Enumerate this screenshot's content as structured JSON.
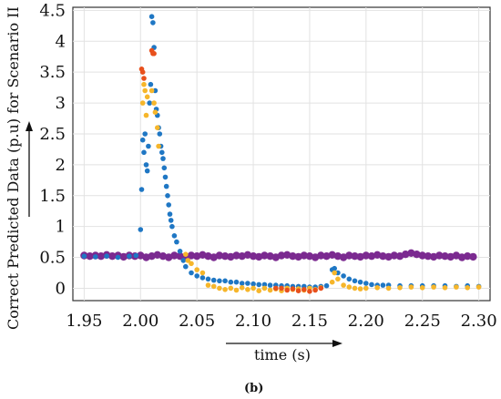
{
  "caption": "(b)",
  "chart_data": {
    "type": "scatter",
    "title": "",
    "xlabel": "time (s)",
    "ylabel": "Correct Predicted Data (p.u) for Scenario II",
    "xlim": [
      1.94,
      2.31
    ],
    "ylim": [
      -0.2,
      4.55
    ],
    "x_ticks": [
      1.95,
      2.0,
      2.05,
      2.1,
      2.15,
      2.2,
      2.25,
      2.3
    ],
    "x_tick_labels": [
      "1.95",
      "2.00",
      "2.05",
      "2.10",
      "2.15",
      "2.20",
      "2.25",
      "2.30"
    ],
    "y_ticks": [
      0,
      0.5,
      1,
      1.5,
      2,
      2.5,
      3,
      3.5,
      4,
      4.5
    ],
    "y_tick_labels": [
      "0",
      "0.5",
      "1",
      "1.5",
      "2",
      "2.5",
      "3",
      "3.5",
      "4",
      "4.5"
    ],
    "grid": true,
    "legend": "none",
    "series": [
      {
        "color": "#7b2a90",
        "points": [
          [
            1.95,
            0.53
          ],
          [
            1.955,
            0.52
          ],
          [
            1.96,
            0.53
          ],
          [
            1.965,
            0.52
          ],
          [
            1.97,
            0.54
          ],
          [
            1.975,
            0.52
          ],
          [
            1.98,
            0.53
          ],
          [
            1.985,
            0.51
          ],
          [
            1.99,
            0.53
          ],
          [
            1.995,
            0.52
          ],
          [
            2.0,
            0.53
          ],
          [
            2.005,
            0.5
          ],
          [
            2.01,
            0.52
          ],
          [
            2.015,
            0.54
          ],
          [
            2.02,
            0.52
          ],
          [
            2.025,
            0.5
          ],
          [
            2.03,
            0.53
          ],
          [
            2.035,
            0.52
          ],
          [
            2.04,
            0.51
          ],
          [
            2.045,
            0.53
          ],
          [
            2.05,
            0.52
          ],
          [
            2.055,
            0.54
          ],
          [
            2.06,
            0.52
          ],
          [
            2.065,
            0.5
          ],
          [
            2.07,
            0.53
          ],
          [
            2.075,
            0.52
          ],
          [
            2.08,
            0.51
          ],
          [
            2.085,
            0.53
          ],
          [
            2.09,
            0.52
          ],
          [
            2.095,
            0.54
          ],
          [
            2.1,
            0.52
          ],
          [
            2.105,
            0.51
          ],
          [
            2.11,
            0.53
          ],
          [
            2.115,
            0.52
          ],
          [
            2.12,
            0.5
          ],
          [
            2.125,
            0.53
          ],
          [
            2.13,
            0.54
          ],
          [
            2.135,
            0.52
          ],
          [
            2.14,
            0.51
          ],
          [
            2.145,
            0.53
          ],
          [
            2.15,
            0.52
          ],
          [
            2.155,
            0.5
          ],
          [
            2.16,
            0.53
          ],
          [
            2.165,
            0.52
          ],
          [
            2.17,
            0.54
          ],
          [
            2.175,
            0.52
          ],
          [
            2.18,
            0.5
          ],
          [
            2.185,
            0.53
          ],
          [
            2.19,
            0.52
          ],
          [
            2.195,
            0.51
          ],
          [
            2.2,
            0.53
          ],
          [
            2.205,
            0.52
          ],
          [
            2.21,
            0.54
          ],
          [
            2.215,
            0.52
          ],
          [
            2.22,
            0.51
          ],
          [
            2.225,
            0.53
          ],
          [
            2.23,
            0.52
          ],
          [
            2.235,
            0.55
          ],
          [
            2.24,
            0.57
          ],
          [
            2.245,
            0.55
          ],
          [
            2.25,
            0.53
          ],
          [
            2.255,
            0.52
          ],
          [
            2.26,
            0.51
          ],
          [
            2.265,
            0.53
          ],
          [
            2.27,
            0.52
          ],
          [
            2.275,
            0.51
          ],
          [
            2.28,
            0.53
          ],
          [
            2.285,
            0.5
          ],
          [
            2.29,
            0.52
          ],
          [
            2.295,
            0.51
          ]
        ]
      },
      {
        "color": "#1f77c4",
        "points": [
          [
            1.95,
            0.52
          ],
          [
            1.96,
            0.51
          ],
          [
            1.97,
            0.52
          ],
          [
            1.98,
            0.5
          ],
          [
            1.99,
            0.52
          ],
          [
            1.996,
            0.53
          ],
          [
            2.0,
            0.95
          ],
          [
            2.001,
            1.6
          ],
          [
            2.002,
            2.4
          ],
          [
            2.003,
            2.2
          ],
          [
            2.004,
            2.5
          ],
          [
            2.005,
            2.0
          ],
          [
            2.006,
            1.9
          ],
          [
            2.007,
            2.3
          ],
          [
            2.008,
            3.0
          ],
          [
            2.009,
            3.3
          ],
          [
            2.01,
            4.4
          ],
          [
            2.011,
            4.3
          ],
          [
            2.012,
            3.9
          ],
          [
            2.013,
            3.2
          ],
          [
            2.014,
            2.9
          ],
          [
            2.015,
            2.8
          ],
          [
            2.016,
            2.6
          ],
          [
            2.017,
            2.5
          ],
          [
            2.018,
            2.3
          ],
          [
            2.019,
            2.2
          ],
          [
            2.02,
            2.1
          ],
          [
            2.021,
            1.95
          ],
          [
            2.022,
            1.8
          ],
          [
            2.023,
            1.65
          ],
          [
            2.024,
            1.5
          ],
          [
            2.025,
            1.35
          ],
          [
            2.026,
            1.2
          ],
          [
            2.027,
            1.1
          ],
          [
            2.028,
            1.0
          ],
          [
            2.03,
            0.85
          ],
          [
            2.032,
            0.75
          ],
          [
            2.035,
            0.6
          ],
          [
            2.038,
            0.45
          ],
          [
            2.04,
            0.35
          ],
          [
            2.045,
            0.25
          ],
          [
            2.05,
            0.2
          ],
          [
            2.055,
            0.17
          ],
          [
            2.06,
            0.15
          ],
          [
            2.065,
            0.13
          ],
          [
            2.07,
            0.12
          ],
          [
            2.075,
            0.12
          ],
          [
            2.08,
            0.1
          ],
          [
            2.085,
            0.1
          ],
          [
            2.09,
            0.08
          ],
          [
            2.095,
            0.08
          ],
          [
            2.1,
            0.07
          ],
          [
            2.105,
            0.06
          ],
          [
            2.11,
            0.06
          ],
          [
            2.115,
            0.05
          ],
          [
            2.12,
            0.05
          ],
          [
            2.125,
            0.04
          ],
          [
            2.13,
            0.04
          ],
          [
            2.135,
            0.03
          ],
          [
            2.14,
            0.03
          ],
          [
            2.145,
            0.03
          ],
          [
            2.15,
            0.02
          ],
          [
            2.155,
            0.02
          ],
          [
            2.16,
            0.03
          ],
          [
            2.165,
            0.04
          ],
          [
            2.17,
            0.3
          ],
          [
            2.172,
            0.32
          ],
          [
            2.175,
            0.25
          ],
          [
            2.18,
            0.2
          ],
          [
            2.185,
            0.15
          ],
          [
            2.19,
            0.12
          ],
          [
            2.195,
            0.1
          ],
          [
            2.2,
            0.08
          ],
          [
            2.205,
            0.06
          ],
          [
            2.21,
            0.05
          ],
          [
            2.215,
            0.05
          ],
          [
            2.22,
            0.05
          ],
          [
            2.23,
            0.04
          ],
          [
            2.24,
            0.04
          ],
          [
            2.25,
            0.04
          ],
          [
            2.26,
            0.04
          ],
          [
            2.27,
            0.04
          ],
          [
            2.28,
            0.03
          ],
          [
            2.29,
            0.04
          ],
          [
            2.3,
            0.03
          ]
        ]
      },
      {
        "color": "#f6b62b",
        "points": [
          [
            2.002,
            3.0
          ],
          [
            2.003,
            3.3
          ],
          [
            2.004,
            3.2
          ],
          [
            2.005,
            2.8
          ],
          [
            2.006,
            3.1
          ],
          [
            2.01,
            3.2
          ],
          [
            2.012,
            3.0
          ],
          [
            2.013,
            2.85
          ],
          [
            2.015,
            2.6
          ],
          [
            2.016,
            2.3
          ],
          [
            2.04,
            0.55
          ],
          [
            2.042,
            0.45
          ],
          [
            2.045,
            0.4
          ],
          [
            2.05,
            0.3
          ],
          [
            2.055,
            0.25
          ],
          [
            2.06,
            0.05
          ],
          [
            2.065,
            0.03
          ],
          [
            2.07,
            0.0
          ],
          [
            2.075,
            -0.02
          ],
          [
            2.08,
            0.0
          ],
          [
            2.085,
            -0.03
          ],
          [
            2.09,
            0.01
          ],
          [
            2.095,
            -0.02
          ],
          [
            2.1,
            0.0
          ],
          [
            2.105,
            -0.04
          ],
          [
            2.11,
            0.0
          ],
          [
            2.115,
            -0.03
          ],
          [
            2.12,
            -0.01
          ],
          [
            2.125,
            -0.04
          ],
          [
            2.13,
            0.0
          ],
          [
            2.135,
            -0.02
          ],
          [
            2.14,
            -0.01
          ],
          [
            2.145,
            -0.03
          ],
          [
            2.15,
            0.0
          ],
          [
            2.155,
            -0.02
          ],
          [
            2.16,
            0.01
          ],
          [
            2.17,
            0.1
          ],
          [
            2.172,
            0.25
          ],
          [
            2.175,
            0.15
          ],
          [
            2.18,
            0.05
          ],
          [
            2.185,
            0.02
          ],
          [
            2.19,
            0.0
          ],
          [
            2.195,
            -0.01
          ],
          [
            2.2,
            0.0
          ],
          [
            2.21,
            0.01
          ],
          [
            2.22,
            0.0
          ],
          [
            2.23,
            0.01
          ],
          [
            2.24,
            0.02
          ],
          [
            2.25,
            0.01
          ],
          [
            2.26,
            0.02
          ],
          [
            2.27,
            0.01
          ],
          [
            2.28,
            0.02
          ],
          [
            2.29,
            0.01
          ],
          [
            2.3,
            0.02
          ]
        ]
      },
      {
        "color": "#e8501c",
        "points": [
          [
            2.001,
            3.55
          ],
          [
            2.002,
            3.5
          ],
          [
            2.003,
            3.4
          ],
          [
            2.01,
            3.85
          ],
          [
            2.011,
            3.8
          ],
          [
            2.012,
            3.8
          ],
          [
            2.12,
            0.0
          ],
          [
            2.125,
            0.0
          ],
          [
            2.13,
            -0.03
          ],
          [
            2.135,
            -0.01
          ],
          [
            2.14,
            -0.04
          ],
          [
            2.145,
            -0.02
          ],
          [
            2.15,
            -0.05
          ],
          [
            2.155,
            -0.03
          ],
          [
            2.16,
            0.0
          ]
        ]
      }
    ]
  }
}
